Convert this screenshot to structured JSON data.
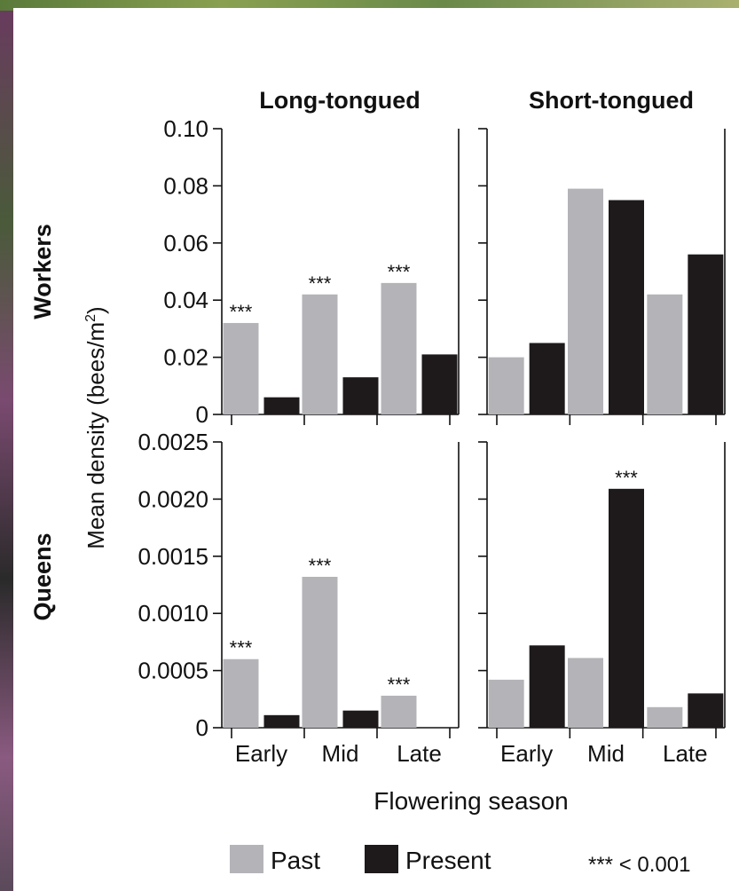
{
  "chart_data": {
    "type": "bar",
    "layout": "2x2 small multiples",
    "columns": [
      "Long-tongued",
      "Short-tongued"
    ],
    "rows": [
      "Workers",
      "Queens"
    ],
    "xlabel": "Flowering season",
    "ylabel": "Mean density (bees/m²)",
    "ylabel_parts": {
      "main": "Mean density (bees/m",
      "sup": "2",
      "end": ")"
    },
    "categories": [
      "Early",
      "Mid",
      "Late"
    ],
    "series_names": [
      "Past",
      "Present"
    ],
    "colors": {
      "Past": "#b4b4b8",
      "Present": "#1e1a1b"
    },
    "significance_marker": "***",
    "legend_note": "*** < 0.001",
    "legend_position": "bottom",
    "panels": [
      {
        "row": "Workers",
        "column": "Long-tongued",
        "ylim": [
          0,
          0.1
        ],
        "yticks": [
          "0",
          "0.02",
          "0.04",
          "0.06",
          "0.08",
          "0.10"
        ],
        "yticks_values": [
          0,
          0.02,
          0.04,
          0.06,
          0.08,
          0.1
        ],
        "show_yticklabels": true,
        "series": [
          {
            "name": "Past",
            "values": [
              0.032,
              0.042,
              0.046
            ]
          },
          {
            "name": "Present",
            "values": [
              0.006,
              0.013,
              0.021
            ]
          }
        ],
        "significance": [
          true,
          true,
          true
        ]
      },
      {
        "row": "Workers",
        "column": "Short-tongued",
        "ylim": [
          0,
          0.1
        ],
        "yticks_values": [
          0,
          0.02,
          0.04,
          0.06,
          0.08,
          0.1
        ],
        "show_yticklabels": false,
        "series": [
          {
            "name": "Past",
            "values": [
              0.02,
              0.079,
              0.042
            ]
          },
          {
            "name": "Present",
            "values": [
              0.025,
              0.075,
              0.056
            ]
          }
        ],
        "significance": [
          false,
          false,
          false
        ]
      },
      {
        "row": "Queens",
        "column": "Long-tongued",
        "ylim": [
          0,
          0.0025
        ],
        "yticks": [
          "0",
          "0.0005",
          "0.0010",
          "0.0015",
          "0.0020",
          "0.0025"
        ],
        "yticks_values": [
          0,
          0.0005,
          0.001,
          0.0015,
          0.002,
          0.0025
        ],
        "show_yticklabels": true,
        "series": [
          {
            "name": "Past",
            "values": [
              0.0006,
              0.00132,
              0.00028
            ]
          },
          {
            "name": "Present",
            "values": [
              0.00011,
              0.00015,
              0.0
            ]
          }
        ],
        "significance": [
          true,
          true,
          true
        ]
      },
      {
        "row": "Queens",
        "column": "Short-tongued",
        "ylim": [
          0,
          0.0025
        ],
        "yticks_values": [
          0,
          0.0005,
          0.001,
          0.0015,
          0.002,
          0.0025
        ],
        "show_yticklabels": false,
        "series": [
          {
            "name": "Past",
            "values": [
              0.00042,
              0.00061,
              0.00018
            ]
          },
          {
            "name": "Present",
            "values": [
              0.00072,
              0.00209,
              0.0003
            ]
          }
        ],
        "significance": [
          false,
          true,
          false
        ]
      }
    ]
  }
}
